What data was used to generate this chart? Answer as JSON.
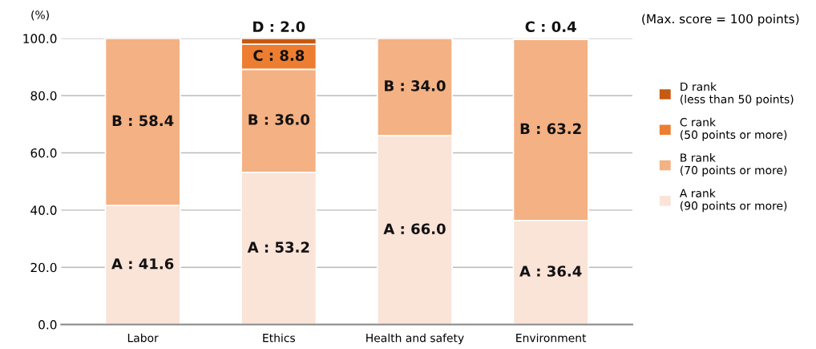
{
  "chart_data": {
    "type": "bar",
    "stacked": true,
    "ylabel": "(%)",
    "categories": [
      "Labor",
      "Ethics",
      "Health and safety",
      "Environment"
    ],
    "series": [
      {
        "name": "A rank\n(90 points or more)",
        "color": "#fae3d7",
        "values": [
          41.6,
          53.2,
          66.0,
          36.4
        ],
        "value_labels": [
          "A : 41.6",
          "A : 53.2",
          "A : 66.0",
          "A : 36.4"
        ]
      },
      {
        "name": "B rank\n(70 points or more)",
        "color": "#f4b183",
        "values": [
          58.4,
          36.0,
          34.0,
          63.2
        ],
        "value_labels": [
          "B : 58.4",
          "B : 36.0",
          "B : 34.0",
          "B : 63.2"
        ]
      },
      {
        "name": "C rank\n(50 points or more)",
        "color": "#ed7d31",
        "values": [
          null,
          8.8,
          null,
          0.4
        ],
        "value_labels": [
          null,
          "C : 8.8",
          null,
          "C : 0.4"
        ]
      },
      {
        "name": "D rank\n(less than 50 points)",
        "color": "#c55a11",
        "values": [
          null,
          2.0,
          null,
          null
        ],
        "value_labels": [
          null,
          "D : 2.0",
          null,
          null
        ]
      }
    ],
    "ylim": [
      0,
      100
    ],
    "yticks": [
      {
        "value": 0,
        "label": "0.0"
      },
      {
        "value": 20,
        "label": "20.0"
      },
      {
        "value": 40,
        "label": "40.0"
      },
      {
        "value": 60,
        "label": "60.0"
      },
      {
        "value": 80,
        "label": "80.0"
      },
      {
        "value": 100,
        "label": "100.0"
      }
    ],
    "grid": "y",
    "legend": "right",
    "annotations": [
      "(Max. score = 100 points)"
    ]
  }
}
